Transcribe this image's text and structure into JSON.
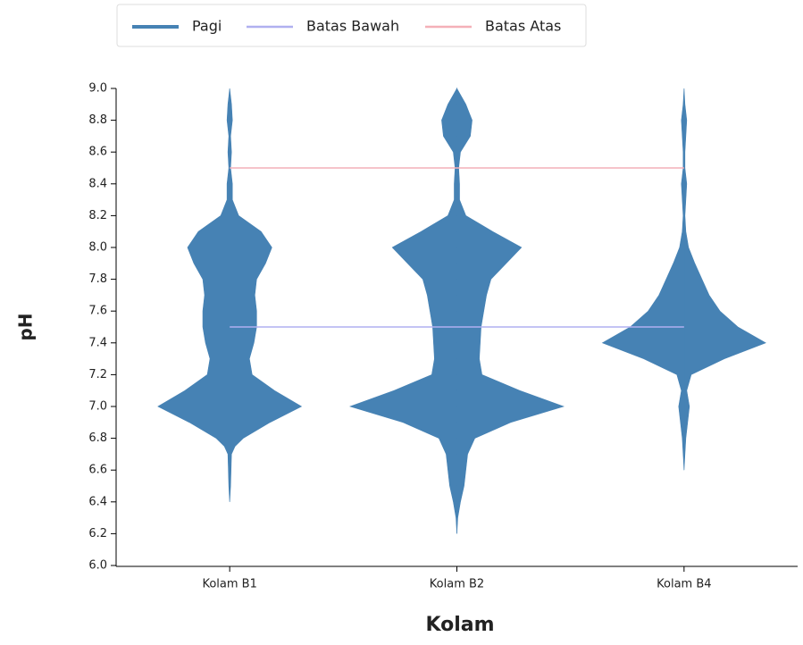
{
  "chart_data": {
    "type": "violin",
    "x_label": "Kolam",
    "y_label": "pH",
    "categories": [
      "Kolam B1",
      "Kolam B2",
      "Kolam B4"
    ],
    "ylim": [
      6.0,
      9.0
    ],
    "yticks": [
      {
        "value": 6,
        "label": "6.0"
      },
      {
        "value": 6.2,
        "label": "6.2"
      },
      {
        "value": 6.4,
        "label": "6.4"
      },
      {
        "value": 6.6,
        "label": "6.6"
      },
      {
        "value": 6.8,
        "label": "6.8"
      },
      {
        "value": 7,
        "label": "7.0"
      },
      {
        "value": 7.2,
        "label": "7.2"
      },
      {
        "value": 7.4,
        "label": "7.4"
      },
      {
        "value": 7.6,
        "label": "7.6"
      },
      {
        "value": 7.8,
        "label": "7.8"
      },
      {
        "value": 8,
        "label": "8.0"
      },
      {
        "value": 8.2,
        "label": "8.2"
      },
      {
        "value": 8.4,
        "label": "8.4"
      },
      {
        "value": 8.6,
        "label": "8.6"
      },
      {
        "value": 8.8,
        "label": "8.8"
      },
      {
        "value": 9,
        "label": "9.0"
      }
    ],
    "series": [
      {
        "name": "Pagi",
        "type": "violin",
        "color": "#4682b4",
        "violins": [
          {
            "y": [
              6.4,
              6.5,
              6.7,
              6.75,
              6.8,
              6.9,
              7.0,
              7.1,
              7.2,
              7.3,
              7.4,
              7.5,
              7.6,
              7.7,
              7.8,
              7.9,
              8.0,
              8.1,
              8.2,
              8.3,
              8.4,
              8.5,
              8.6,
              8.7,
              8.8,
              8.9,
              9.0
            ],
            "density": [
              0,
              1,
              2,
              6,
              15,
              45,
              80,
              50,
              25,
              22,
              27,
              30,
              30,
              28,
              30,
              40,
              47,
              35,
              10,
              3,
              3,
              1,
              2,
              1,
              3,
              2,
              0
            ]
          },
          {
            "y": [
              6.2,
              6.3,
              6.4,
              6.5,
              6.6,
              6.7,
              6.8,
              6.9,
              7.0,
              7.1,
              7.2,
              7.3,
              7.4,
              7.5,
              7.6,
              7.7,
              7.8,
              7.9,
              8.0,
              8.1,
              8.2,
              8.3,
              8.4,
              8.5,
              8.6,
              8.7,
              8.8,
              8.9,
              9.0
            ],
            "density": [
              0,
              1,
              4,
              8,
              10,
              12,
              20,
              60,
              119,
              70,
              28,
              25,
              26,
              27,
              30,
              33,
              38,
              55,
              72,
              40,
              10,
              3,
              3,
              2,
              4,
              15,
              17,
              10,
              0
            ]
          },
          {
            "y": [
              6.6,
              6.7,
              6.8,
              6.9,
              7.0,
              7.1,
              7.2,
              7.3,
              7.4,
              7.5,
              7.6,
              7.7,
              7.8,
              7.9,
              8.0,
              8.1,
              8.2,
              8.3,
              8.4,
              8.5,
              8.6,
              8.7,
              8.8,
              8.9,
              9.0
            ],
            "density": [
              0,
              1,
              2,
              4,
              6,
              3,
              8,
              45,
              91,
              60,
              40,
              28,
              20,
              12,
              5,
              2,
              1,
              2,
              3,
              1,
              1,
              2,
              3,
              1,
              0
            ]
          }
        ]
      },
      {
        "name": "Batas Bawah",
        "type": "line",
        "color": "#b0b0f0",
        "values": [
          7.5,
          7.5,
          7.5
        ]
      },
      {
        "name": "Batas Atas",
        "type": "line",
        "color": "#f4b0b8",
        "values": [
          8.5,
          8.5,
          8.5
        ]
      }
    ]
  }
}
